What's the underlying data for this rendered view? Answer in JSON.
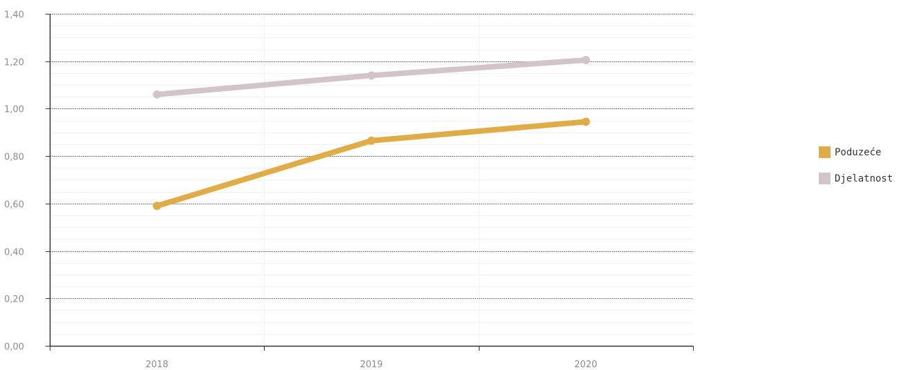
{
  "chart_data": {
    "type": "line",
    "categories": [
      "2018",
      "2019",
      "2020"
    ],
    "series": [
      {
        "name": "Poduzeće",
        "values": [
          0.59,
          0.865,
          0.945
        ],
        "color": "#e0ac47"
      },
      {
        "name": "Djelatnost",
        "values": [
          1.06,
          1.14,
          1.205
        ],
        "color": "#d3c4c8"
      }
    ],
    "ylim": [
      0,
      1.4
    ],
    "y_ticks": [
      "0,00",
      "0,20",
      "0,40",
      "0,60",
      "0,80",
      "1,00",
      "1,20",
      "1,40"
    ],
    "grid": true,
    "legend_position": "right"
  }
}
